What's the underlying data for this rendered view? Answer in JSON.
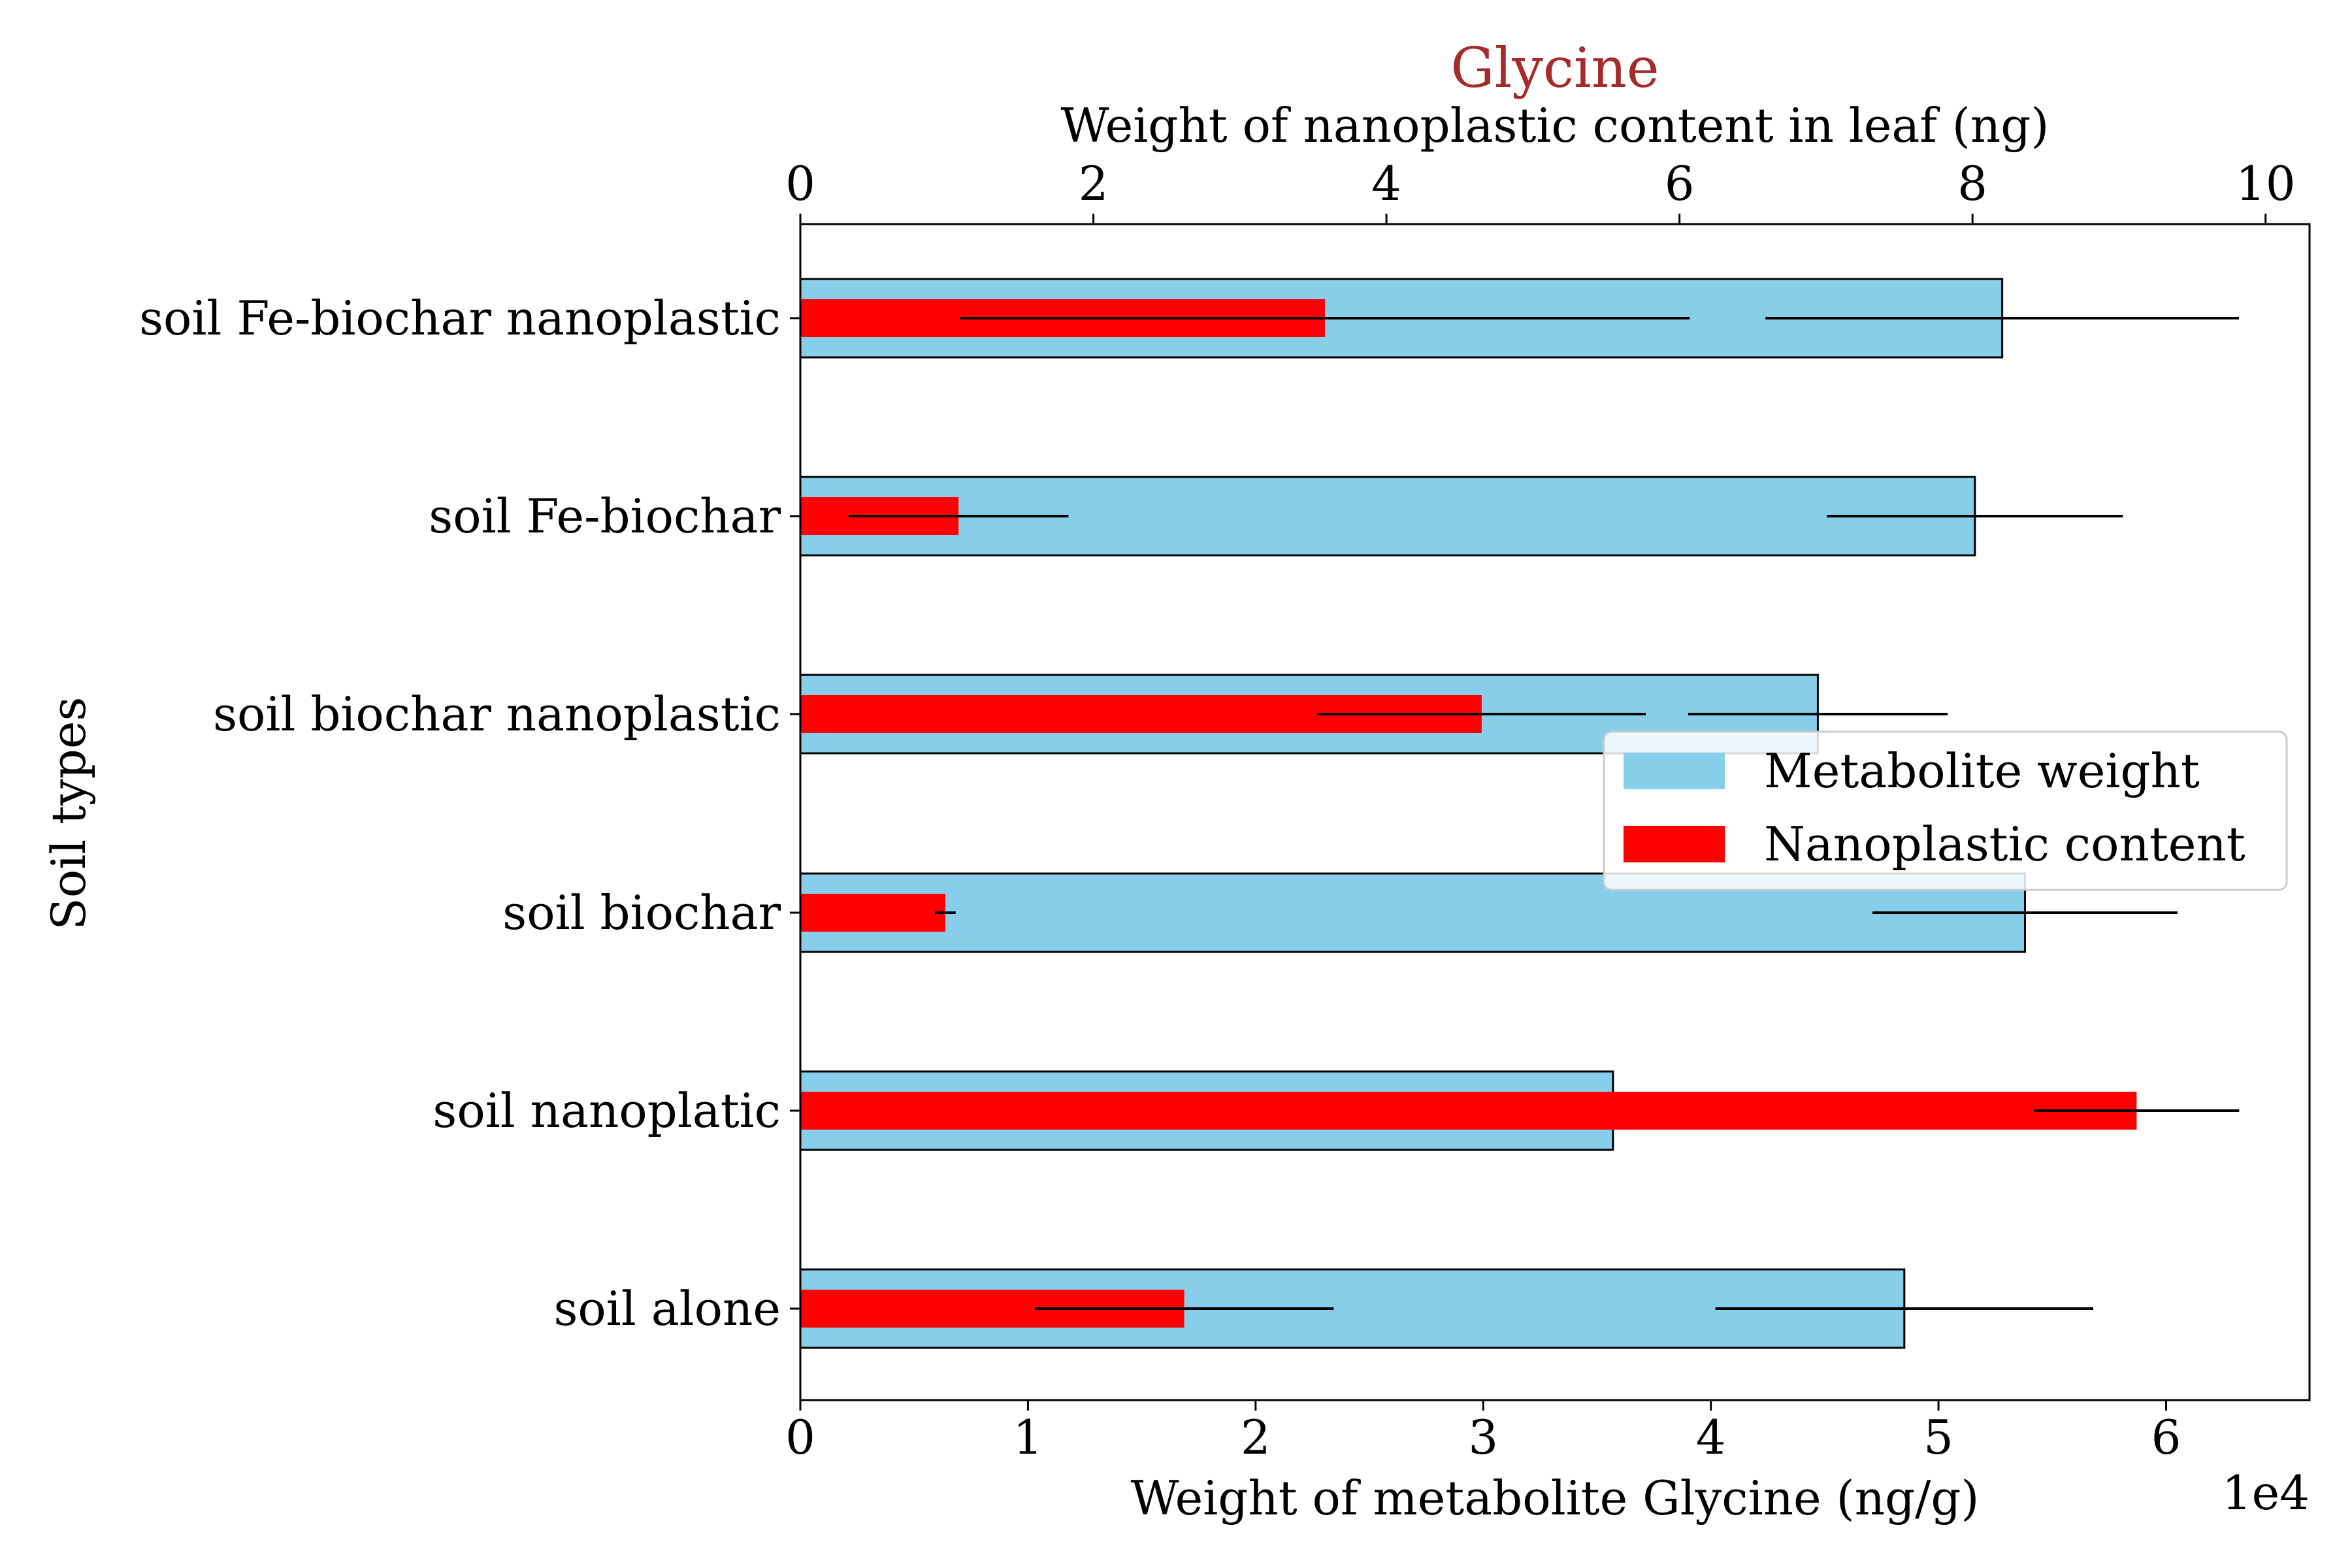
{
  "chart_data": {
    "type": "bar",
    "orientation": "horizontal",
    "title": "Glycine",
    "title_color": "#a52a2a",
    "categories": [
      "soil alone",
      "soil nanoplatic",
      "soil biochar",
      "soil biochar nanoplastic",
      "soil Fe-biochar",
      "soil Fe-biochar nanoplastic"
    ],
    "ylabel": "Soil types",
    "bottom_axis": {
      "label": "Weight of metabolite Glycine (ng/g)",
      "offset_label": "1e4",
      "ticks": [
        "0",
        "1",
        "2",
        "3",
        "4",
        "5",
        "6"
      ],
      "xlim": [
        0,
        66300
      ]
    },
    "top_axis": {
      "label": "Weight of nanoplastic content in leaf (ng)",
      "ticks": [
        "0",
        "2",
        "4",
        "6",
        "8",
        "10"
      ],
      "xlim": [
        0,
        10.3
      ]
    },
    "series": [
      {
        "name": "Metabolite weight",
        "axis": "bottom",
        "color": "#87ceeb",
        "values": [
          48500,
          35700,
          53800,
          44700,
          51600,
          52800
        ],
        "errors": [
          8300,
          0,
          6700,
          5700,
          6500,
          10400
        ]
      },
      {
        "name": "Nanoplastic content",
        "axis": "top",
        "color": "#ff0000",
        "values": [
          2.62,
          9.12,
          0.99,
          4.65,
          1.08,
          3.58
        ],
        "errors": [
          1.02,
          0.7,
          0.07,
          1.12,
          0.75,
          2.49
        ]
      }
    ],
    "legend": {
      "placement": "center-right"
    },
    "grid": false
  }
}
